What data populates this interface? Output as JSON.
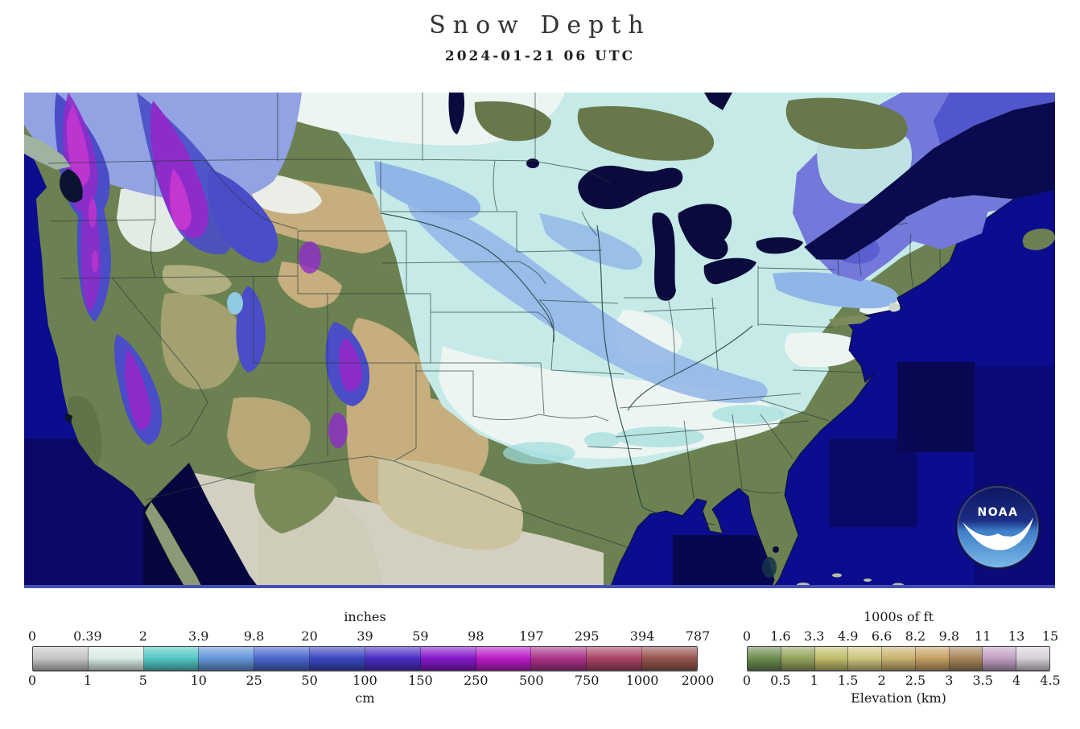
{
  "title": "Snow Depth",
  "subtitle": "2024-01-21 06 UTC",
  "noaa_logo": {
    "label": "NOAA"
  },
  "snow_legend": {
    "unit_top": "inches",
    "unit_bottom": "cm",
    "ticks_top": [
      "0",
      "0.39",
      "2",
      "3.9",
      "9.8",
      "20",
      "39",
      "59",
      "98",
      "197",
      "295",
      "394",
      "787"
    ],
    "ticks_bottom": [
      "0",
      "1",
      "5",
      "10",
      "25",
      "50",
      "100",
      "150",
      "250",
      "500",
      "750",
      "1000",
      "2000"
    ],
    "segment_colors": [
      "#c6c6c6",
      "#d9ece5",
      "#52c8c4",
      "#6495da",
      "#4a67ce",
      "#3c47c2",
      "#4d2ec4",
      "#8619c8",
      "#bc1cc8",
      "#aa3489",
      "#ab4466",
      "#97564e"
    ]
  },
  "elevation_legend": {
    "unit_top": "1000s of ft",
    "label_bottom": "Elevation (km)",
    "ticks_top": [
      "0",
      "1.6",
      "3.3",
      "4.9",
      "6.6",
      "8.2",
      "9.8",
      "11",
      "13",
      "15"
    ],
    "ticks_bottom": [
      "0",
      "0.5",
      "1",
      "1.5",
      "2",
      "2.5",
      "3",
      "3.5",
      "4",
      "4.5"
    ],
    "segment_colors": [
      "#6d8d50",
      "#95a45e",
      "#c1bd6c",
      "#cfc67e",
      "#cab26f",
      "#c7a164",
      "#a8875a",
      "#c1a2c3",
      "#d7d2d7"
    ]
  },
  "map_colors": {
    "ocean": "#0c0c8e",
    "ocean_dark_tile": "#070750",
    "land_green": "#6c8152",
    "boreal_green": "#68784a",
    "plains_tan": "#c6ae7e",
    "mexico_beige": "#d3d0c1",
    "snow_trace_white": "#edf5f2",
    "snow_pale_cyan": "#c5eae7",
    "snow_light_blue": "#90b5e7",
    "snow_periwinkle": "#7478da",
    "snow_deep_blue": "#4a4cc8",
    "snow_purple": "#8e2cc9",
    "snow_magenta": "#c336cf",
    "lake_navy": "#0a0a3c"
  }
}
